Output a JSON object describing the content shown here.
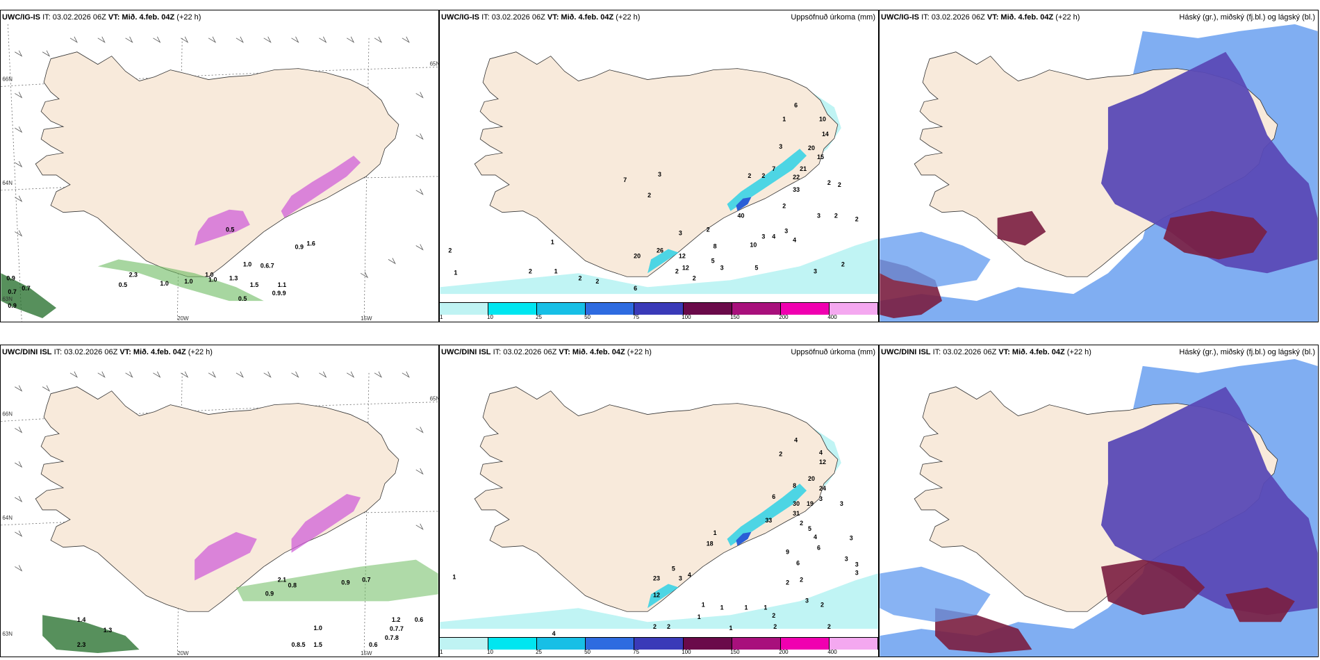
{
  "common": {
    "init_time": "IT: 03.02.2026 06Z",
    "valid_prefix": "VT:",
    "valid_time": "Mið. 4.feb. 04Z",
    "lead": "(+22 h)"
  },
  "rows": [
    {
      "model": "UWC/IG-IS",
      "wind_panel": {
        "labels": [
          "0.9",
          "0.7",
          "0.7",
          "0.9",
          "1.0",
          "0.5",
          "2.3",
          "1.0",
          "1.0",
          "1.3",
          "1.0",
          "0.6.7",
          "1.5",
          "1.1",
          "0.9.9",
          "0.5",
          "0.9",
          "1.6",
          "0.5",
          "1.0"
        ],
        "grid_labels": [
          "20W",
          "15W",
          "65N",
          "64N",
          "66N",
          "63N"
        ]
      },
      "precip_panel": {
        "right_title": "Uppsöfnuð úrkoma (mm)",
        "labels": [
          "6",
          "1",
          "10",
          "14",
          "20",
          "15",
          "21",
          "22",
          "33",
          "2",
          "2",
          "3",
          "2",
          "2",
          "7",
          "3",
          "2",
          "2",
          "2",
          "40",
          "10",
          "3",
          "4",
          "3",
          "3",
          "2",
          "5",
          "4",
          "2",
          "2",
          "8",
          "12",
          "26",
          "12",
          "20",
          "6",
          "5",
          "3",
          "2",
          "2",
          "1",
          "2",
          "1",
          "2",
          "2",
          "1",
          "3",
          "7",
          "3",
          "2"
        ]
      },
      "cloud_panel": {
        "right_title": "Háský (gr.), miðský (fj.bl.) og lágský (bl.)"
      }
    },
    {
      "model": "UWC/DINI ISL",
      "wind_panel": {
        "labels": [
          "1.2",
          "0.6",
          "0.7.7",
          "0.7.8",
          "1.3",
          "2.3",
          "1.4",
          "0.8.5",
          "0.6",
          "0.9",
          "0.7",
          "0.9",
          "2.1",
          "0.8",
          "1.5",
          "1.0"
        ],
        "grid_labels": [
          "20W",
          "15W",
          "65N",
          "64N",
          "66N",
          "63N"
        ]
      },
      "precip_panel": {
        "right_title": "Uppsöfnuð úrkoma (mm)",
        "labels": [
          "4",
          "2",
          "4",
          "12",
          "20",
          "24",
          "8",
          "6",
          "30",
          "19",
          "31",
          "33",
          "2",
          "3",
          "3",
          "9",
          "6",
          "3",
          "2",
          "2",
          "1",
          "1",
          "3",
          "2",
          "1",
          "2",
          "23",
          "12",
          "5",
          "3",
          "4",
          "1",
          "1",
          "1",
          "2",
          "2",
          "2",
          "2",
          "6",
          "4",
          "5",
          "3",
          "3",
          "3",
          "18",
          "1",
          "1",
          "4"
        ]
      },
      "cloud_panel": {
        "right_title": "Háský (gr.), miðský (fj.bl.) og lágský (bl.)"
      }
    }
  ],
  "colorbar": {
    "ticks": [
      "1",
      "10",
      "25",
      "50",
      "75",
      "100",
      "150",
      "200",
      "400"
    ],
    "colors": [
      "#bff3f3",
      "#00e6f0",
      "#17bfe6",
      "#2e6be0",
      "#3a3ab8",
      "#6a0a4a",
      "#a8107c",
      "#f000b0",
      "#f4a8f0"
    ]
  },
  "colors": {
    "land": "#f8eadb",
    "precip_light": "#c0f4f4",
    "precip_mid": "#22d0e6",
    "precip_high": "#2a5ed6",
    "snow_light": "#d6f0d0",
    "snow_mid": "#6dbb60",
    "snow_dark": "#1f6b25",
    "pink": "#d060d8",
    "purple": "#5a4ab6",
    "maroon": "#7a1e40",
    "lightblue": "#6aa0f0"
  }
}
